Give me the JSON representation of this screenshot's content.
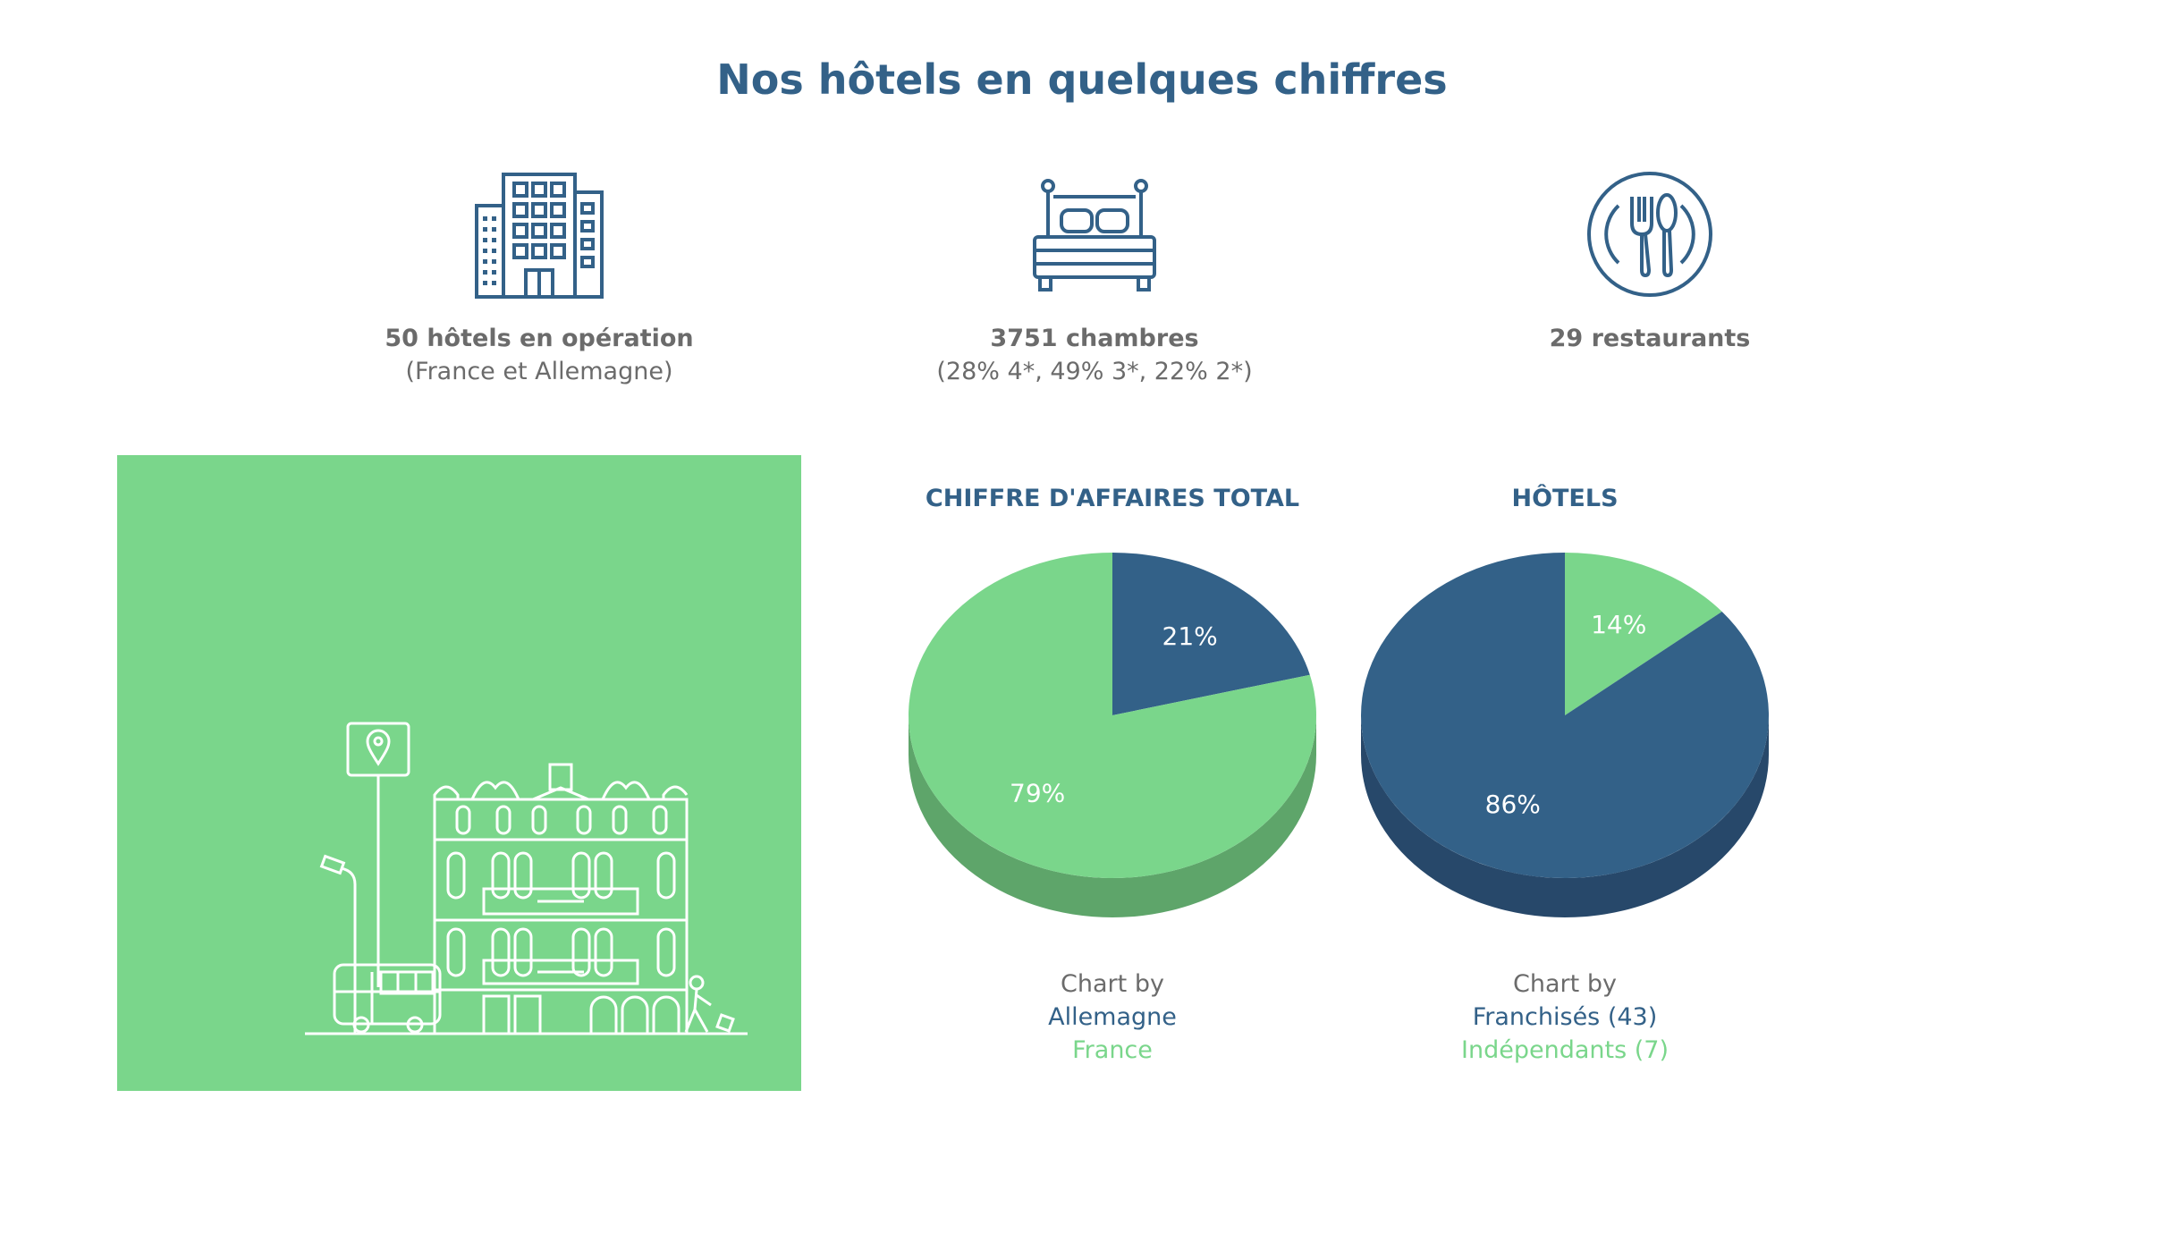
{
  "page": {
    "title": "Nos hôtels en quelques chiffres"
  },
  "stats": [
    {
      "icon": "building-icon",
      "main": "50 hôtels en opération",
      "sub": "(France et Allemagne)"
    },
    {
      "icon": "bed-icon",
      "main": "3751 chambres",
      "sub": "(28% 4*, 49% 3*, 22% 2*)"
    },
    {
      "icon": "restaurant-icon",
      "main": "29 restaurants",
      "sub": ""
    }
  ],
  "colors": {
    "dark_blue": "#336188",
    "green": "#7ad68b",
    "dark_blue_side": "#27486a",
    "green_side": "#5ea56a"
  },
  "chart_data": [
    {
      "type": "pie",
      "title": "CHIFFRE D'AFFAIRES TOTAL",
      "legend_title": "Chart by",
      "legend_placement": "bottom",
      "slices": [
        {
          "name": "Allemagne",
          "value": 21,
          "label": "21%",
          "color": "#336188"
        },
        {
          "name": "France",
          "value": 79,
          "label": "79%",
          "color": "#7ad68b"
        }
      ]
    },
    {
      "type": "pie",
      "title": "HÔTELS",
      "legend_title": "Chart by",
      "legend_placement": "bottom",
      "slices": [
        {
          "name": "Indépendants (7)",
          "value": 14,
          "label": "14%",
          "color": "#7ad68b"
        },
        {
          "name": "Franchisés (43)",
          "value": 86,
          "label": "86%",
          "color": "#336188"
        }
      ],
      "legend_order": [
        "Franchisés (43)",
        "Indépendants (7)"
      ]
    }
  ]
}
